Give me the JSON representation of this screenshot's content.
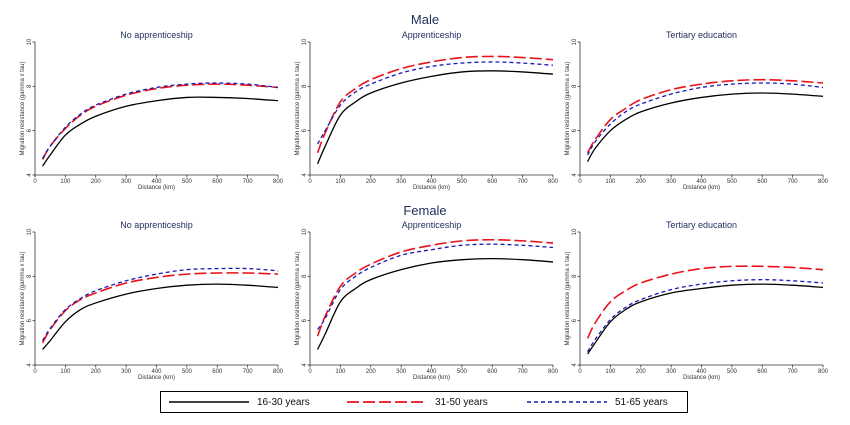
{
  "rows": {
    "male": {
      "title": "Male"
    },
    "female": {
      "title": "Female"
    }
  },
  "legend": [
    {
      "label": "16-30 years",
      "color": "#000000",
      "style": "solid"
    },
    {
      "label": "31-50 years",
      "color": "#e8131b",
      "style": "long-dash"
    },
    {
      "label": "51-65 years",
      "color": "#1a1ab5",
      "style": "short-dash"
    }
  ],
  "chart_data": [
    {
      "type": "line",
      "row": "Male",
      "title": "No apprenticeship",
      "xlabel": "Distance (km)",
      "ylabel": "Migration resistance (gamma x tau)",
      "xlim": [
        0,
        800
      ],
      "ylim": [
        4,
        10
      ],
      "xticks": [
        0,
        100,
        200,
        300,
        400,
        500,
        600,
        700,
        800
      ],
      "yticks": [
        4,
        6,
        8,
        10
      ],
      "x": [
        25,
        50,
        100,
        150,
        200,
        300,
        400,
        500,
        600,
        700,
        800
      ],
      "series": [
        {
          "name": "16-30 years",
          "values": [
            4.4,
            4.9,
            5.8,
            6.3,
            6.65,
            7.1,
            7.35,
            7.5,
            7.5,
            7.45,
            7.35
          ]
        },
        {
          "name": "31-50 years",
          "values": [
            4.7,
            5.3,
            6.1,
            6.7,
            7.1,
            7.6,
            7.9,
            8.05,
            8.1,
            8.05,
            7.95
          ]
        },
        {
          "name": "51-65 years",
          "values": [
            4.75,
            5.3,
            6.15,
            6.75,
            7.15,
            7.65,
            7.95,
            8.1,
            8.15,
            8.1,
            7.95
          ]
        }
      ]
    },
    {
      "type": "line",
      "row": "Male",
      "title": "Apprenticeship",
      "xlabel": "Distance (km)",
      "ylabel": "Migration resistance (gamma x tau)",
      "xlim": [
        0,
        800
      ],
      "ylim": [
        4,
        10
      ],
      "xticks": [
        0,
        100,
        200,
        300,
        400,
        500,
        600,
        700,
        800
      ],
      "yticks": [
        4,
        6,
        8,
        10
      ],
      "x": [
        25,
        50,
        100,
        150,
        200,
        300,
        400,
        500,
        600,
        700,
        800
      ],
      "series": [
        {
          "name": "16-30 years",
          "values": [
            4.5,
            5.3,
            6.7,
            7.3,
            7.7,
            8.15,
            8.45,
            8.65,
            8.7,
            8.65,
            8.55
          ]
        },
        {
          "name": "31-50 years",
          "values": [
            5.0,
            5.9,
            7.3,
            7.9,
            8.3,
            8.8,
            9.1,
            9.3,
            9.35,
            9.3,
            9.2
          ]
        },
        {
          "name": "51-65 years",
          "values": [
            5.4,
            6.0,
            7.15,
            7.75,
            8.1,
            8.6,
            8.9,
            9.05,
            9.1,
            9.05,
            8.95
          ]
        }
      ]
    },
    {
      "type": "line",
      "row": "Male",
      "title": "Tertiary education",
      "xlabel": "Distance (km)",
      "ylabel": "Migration resistance (gamma x tau)",
      "xlim": [
        0,
        800
      ],
      "ylim": [
        4,
        10
      ],
      "xticks": [
        0,
        100,
        200,
        300,
        400,
        500,
        600,
        700,
        800
      ],
      "yticks": [
        4,
        6,
        8,
        10
      ],
      "x": [
        25,
        50,
        100,
        150,
        200,
        300,
        400,
        500,
        600,
        700,
        800
      ],
      "series": [
        {
          "name": "16-30 years",
          "values": [
            4.6,
            5.2,
            6.0,
            6.5,
            6.85,
            7.25,
            7.5,
            7.65,
            7.7,
            7.65,
            7.55
          ]
        },
        {
          "name": "31-50 years",
          "values": [
            5.0,
            5.6,
            6.5,
            7.0,
            7.4,
            7.85,
            8.1,
            8.25,
            8.3,
            8.25,
            8.15
          ]
        },
        {
          "name": "51-65 years",
          "values": [
            4.9,
            5.5,
            6.3,
            6.85,
            7.2,
            7.65,
            7.95,
            8.1,
            8.15,
            8.1,
            7.95
          ]
        }
      ]
    },
    {
      "type": "line",
      "row": "Female",
      "title": "No apprenticeship",
      "xlabel": "Distance (km)",
      "ylabel": "Migration resistance (gamma x tau)",
      "xlim": [
        0,
        800
      ],
      "ylim": [
        4,
        10
      ],
      "xticks": [
        0,
        100,
        200,
        300,
        400,
        500,
        600,
        700,
        800
      ],
      "yticks": [
        4,
        6,
        8,
        10
      ],
      "x": [
        25,
        50,
        100,
        150,
        200,
        300,
        400,
        500,
        600,
        700,
        800
      ],
      "series": [
        {
          "name": "16-30 years",
          "values": [
            4.7,
            5.1,
            5.95,
            6.5,
            6.8,
            7.2,
            7.45,
            7.6,
            7.65,
            7.6,
            7.5
          ]
        },
        {
          "name": "31-50 years",
          "values": [
            5.0,
            5.6,
            6.45,
            6.95,
            7.25,
            7.7,
            7.95,
            8.1,
            8.15,
            8.15,
            8.1
          ]
        },
        {
          "name": "51-65 years",
          "values": [
            5.1,
            5.65,
            6.5,
            7.0,
            7.35,
            7.8,
            8.1,
            8.3,
            8.35,
            8.35,
            8.25
          ]
        }
      ]
    },
    {
      "type": "line",
      "row": "Female",
      "title": "Apprenticeship",
      "xlabel": "Distance (km)",
      "ylabel": "Migration resistance (gamma x tau)",
      "xlim": [
        0,
        800
      ],
      "ylim": [
        4,
        10
      ],
      "xticks": [
        0,
        100,
        200,
        300,
        400,
        500,
        600,
        700,
        800
      ],
      "yticks": [
        4,
        6,
        8,
        10
      ],
      "x": [
        25,
        50,
        100,
        150,
        200,
        300,
        400,
        500,
        600,
        700,
        800
      ],
      "series": [
        {
          "name": "16-30 years",
          "values": [
            4.7,
            5.4,
            6.85,
            7.45,
            7.85,
            8.3,
            8.6,
            8.75,
            8.8,
            8.75,
            8.65
          ]
        },
        {
          "name": "31-50 years",
          "values": [
            5.3,
            6.2,
            7.55,
            8.15,
            8.55,
            9.1,
            9.4,
            9.6,
            9.65,
            9.6,
            9.5
          ]
        },
        {
          "name": "51-65 years",
          "values": [
            5.6,
            6.1,
            7.4,
            8.0,
            8.4,
            8.95,
            9.2,
            9.4,
            9.45,
            9.4,
            9.3
          ]
        }
      ]
    },
    {
      "type": "line",
      "row": "Female",
      "title": "Tertiary education",
      "xlabel": "Distance (km)",
      "ylabel": "Migration resistance (gamma x tau)",
      "xlim": [
        0,
        800
      ],
      "ylim": [
        4,
        10
      ],
      "xticks": [
        0,
        100,
        200,
        300,
        400,
        500,
        600,
        700,
        800
      ],
      "yticks": [
        4,
        6,
        8,
        10
      ],
      "x": [
        25,
        50,
        100,
        150,
        200,
        300,
        400,
        500,
        600,
        700,
        800
      ],
      "series": [
        {
          "name": "16-30 years",
          "values": [
            4.5,
            5.0,
            5.95,
            6.5,
            6.85,
            7.25,
            7.45,
            7.6,
            7.65,
            7.6,
            7.5
          ]
        },
        {
          "name": "31-50 years",
          "values": [
            5.2,
            5.9,
            6.85,
            7.35,
            7.7,
            8.1,
            8.35,
            8.45,
            8.45,
            8.4,
            8.3
          ]
        },
        {
          "name": "51-65 years",
          "values": [
            4.6,
            5.15,
            6.05,
            6.6,
            6.95,
            7.4,
            7.65,
            7.8,
            7.85,
            7.8,
            7.7
          ]
        }
      ]
    }
  ]
}
